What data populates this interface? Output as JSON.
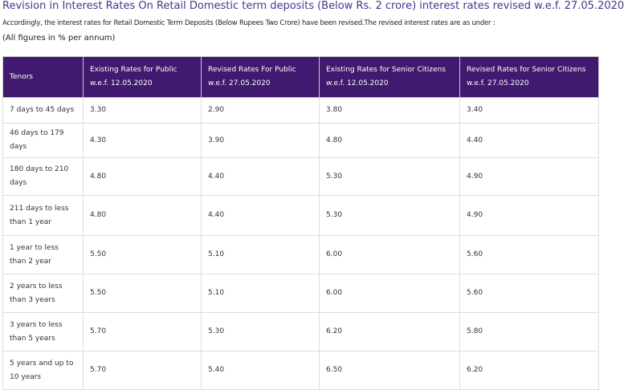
{
  "header": {
    "title": "Revision in Interest Rates On Retail Domestic term deposits (Below Rs. 2 crore) interest rates revised w.e.f. 27.05.2020",
    "intro": "Accordingly, the interest rates for Retail Domestic Term Deposits (Below Rupees Two Crore) have been revised.The revised interest rates are as under :",
    "note": "(All figures in % per annum)"
  },
  "table": {
    "columns": [
      "Tenors",
      "Existing Rates for Public w.e.f. 12.05.2020",
      "Revised Rates For Public w.e.f. 27.05.2020",
      "Existing Rates for Senior Citizens w.e.f. 12.05.2020",
      "Revised Rates for Senior Citizens w.e.f. 27.05.2020"
    ],
    "rows": [
      [
        "7 days to 45 days",
        "3.30",
        "2.90",
        "3.80",
        "3.40"
      ],
      [
        "46 days to 179 days",
        "4.30",
        "3.90",
        "4.80",
        "4.40"
      ],
      [
        "180 days to 210 days",
        "4.80",
        "4.40",
        "5.30",
        "4.90"
      ],
      [
        "211 days to less than 1 year",
        "4.80",
        "4.40",
        "5.30",
        "4.90"
      ],
      [
        "1 year to less than 2 year",
        "5.50",
        "5.10",
        "6.00",
        "5.60"
      ],
      [
        "2 years to less than 3 years",
        "5.50",
        "5.10",
        "6.00",
        "5.60"
      ],
      [
        "3 years to less than 5 years",
        "5.70",
        "5.30",
        "6.20",
        "5.80"
      ],
      [
        "5 years and up to 10 years",
        "5.70",
        "5.40",
        "6.50",
        "6.20"
      ]
    ]
  }
}
